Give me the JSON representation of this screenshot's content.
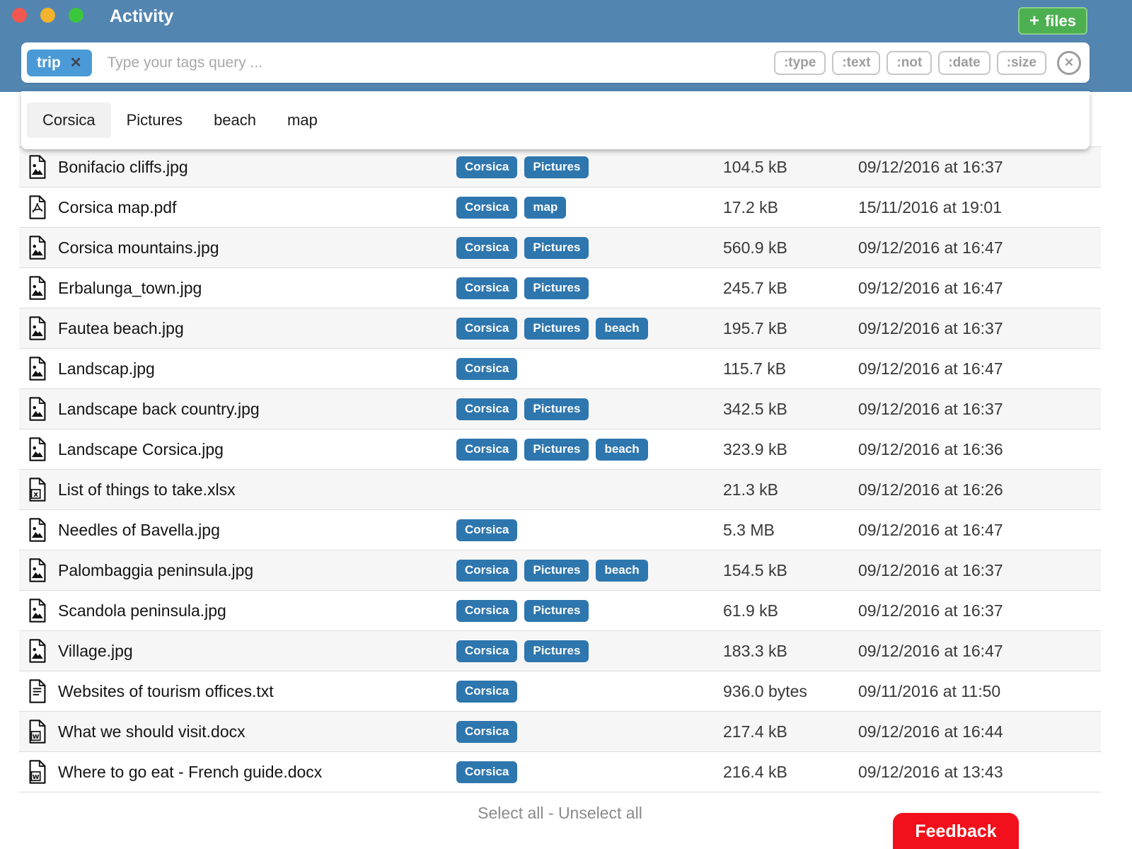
{
  "window": {
    "title": "Activity"
  },
  "header": {
    "files_button_label": "files"
  },
  "icons": {
    "plus": "+",
    "chip_remove": "✕",
    "clear_circle": "✕"
  },
  "colors": {
    "titlebar": "#5385b1",
    "tag_chip": "#2e76ae",
    "search_chip": "#4a9ad7",
    "files_button": "#4cb050",
    "feedback_button": "#f1101b",
    "row_stripe": "#f6f6f6"
  },
  "search": {
    "chip_label": "trip",
    "placeholder": "Type your tags query ...",
    "filters": [
      ":type",
      ":text",
      ":not",
      ":date",
      ":size"
    ]
  },
  "suggestions": [
    {
      "label": "Corsica",
      "highlighted": true
    },
    {
      "label": "Pictures",
      "highlighted": false
    },
    {
      "label": "beach",
      "highlighted": false
    },
    {
      "label": "map",
      "highlighted": false
    }
  ],
  "files": [
    {
      "name": "Bonifacio cliffs.jpg",
      "type": "image",
      "tags": [
        "Corsica",
        "Pictures"
      ],
      "size": "104.5 kB",
      "date": "09/12/2016 at 16:37"
    },
    {
      "name": "Corsica map.pdf",
      "type": "pdf",
      "tags": [
        "Corsica",
        "map"
      ],
      "size": "17.2 kB",
      "date": "15/11/2016 at 19:01"
    },
    {
      "name": "Corsica mountains.jpg",
      "type": "image",
      "tags": [
        "Corsica",
        "Pictures"
      ],
      "size": "560.9 kB",
      "date": "09/12/2016 at 16:47"
    },
    {
      "name": "Erbalunga_town.jpg",
      "type": "image",
      "tags": [
        "Corsica",
        "Pictures"
      ],
      "size": "245.7 kB",
      "date": "09/12/2016 at 16:47"
    },
    {
      "name": "Fautea beach.jpg",
      "type": "image",
      "tags": [
        "Corsica",
        "Pictures",
        "beach"
      ],
      "size": "195.7 kB",
      "date": "09/12/2016 at 16:37"
    },
    {
      "name": "Landscap.jpg",
      "type": "image",
      "tags": [
        "Corsica"
      ],
      "size": "115.7 kB",
      "date": "09/12/2016 at 16:47"
    },
    {
      "name": "Landscape back country.jpg",
      "type": "image",
      "tags": [
        "Corsica",
        "Pictures"
      ],
      "size": "342.5 kB",
      "date": "09/12/2016 at 16:37"
    },
    {
      "name": "Landscape Corsica.jpg",
      "type": "image",
      "tags": [
        "Corsica",
        "Pictures",
        "beach"
      ],
      "size": "323.9 kB",
      "date": "09/12/2016 at 16:36"
    },
    {
      "name": "List of things to take.xlsx",
      "type": "excel",
      "tags": [],
      "size": "21.3 kB",
      "date": "09/12/2016 at 16:26"
    },
    {
      "name": "Needles of Bavella.jpg",
      "type": "image",
      "tags": [
        "Corsica"
      ],
      "size": "5.3 MB",
      "date": "09/12/2016 at 16:47"
    },
    {
      "name": "Palombaggia peninsula.jpg",
      "type": "image",
      "tags": [
        "Corsica",
        "Pictures",
        "beach"
      ],
      "size": "154.5 kB",
      "date": "09/12/2016 at 16:37"
    },
    {
      "name": "Scandola peninsula.jpg",
      "type": "image",
      "tags": [
        "Corsica",
        "Pictures"
      ],
      "size": "61.9 kB",
      "date": "09/12/2016 at 16:37"
    },
    {
      "name": "Village.jpg",
      "type": "image",
      "tags": [
        "Corsica",
        "Pictures"
      ],
      "size": "183.3 kB",
      "date": "09/12/2016 at 16:47"
    },
    {
      "name": "Websites of tourism offices.txt",
      "type": "text",
      "tags": [
        "Corsica"
      ],
      "size": "936.0 bytes",
      "date": "09/11/2016 at 11:50"
    },
    {
      "name": "What we should visit.docx",
      "type": "word",
      "tags": [
        "Corsica"
      ],
      "size": "217.4 kB",
      "date": "09/12/2016 at 16:44"
    },
    {
      "name": "Where to go eat - French guide.docx",
      "type": "word",
      "tags": [
        "Corsica"
      ],
      "size": "216.4 kB",
      "date": "09/12/2016 at 13:43"
    }
  ],
  "footer": {
    "select_all": "Select all",
    "separator": " - ",
    "unselect_all": "Unselect all",
    "feedback": "Feedback"
  }
}
